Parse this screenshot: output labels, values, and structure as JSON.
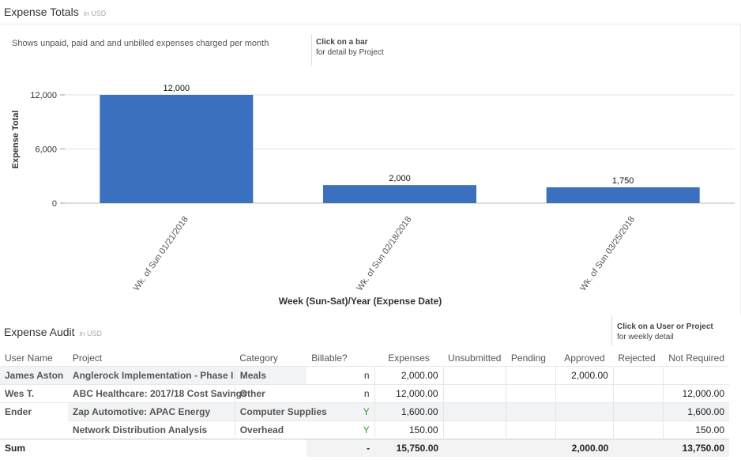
{
  "totals": {
    "title": "Expense Totals",
    "unit": "in USD",
    "description": "Shows unpaid, paid and and unbilled expenses charged per month",
    "hint_bold": "Click on a bar",
    "hint_text": "for detail by Project"
  },
  "chart_data": {
    "type": "bar",
    "categories": [
      "Wk. of Sun 01/21/2018",
      "Wk. of Sun 02/18/2018",
      "Wk. of Sun 03/25/2018"
    ],
    "values": [
      12000,
      2000,
      1750
    ],
    "data_labels": [
      "12,000",
      "2,000",
      "1,750"
    ],
    "yticks": [
      0,
      6000,
      12000
    ],
    "ytick_labels": [
      "0",
      "6,000",
      "12,000"
    ],
    "ylim": [
      0,
      12000
    ],
    "xlabel": "Week (Sun-Sat)/Year (Expense Date)",
    "ylabel": "Expense Total",
    "bar_color": "#3a70be",
    "grid": true
  },
  "audit": {
    "title": "Expense Audit",
    "unit": "in USD",
    "hint_bold": "Click on a User or Project",
    "hint_text": "for weekly detail",
    "columns": [
      "User Name",
      "Project",
      "Category",
      "Billable?",
      "Expenses",
      "Unsubmitted",
      "Pending",
      "Approved",
      "Rejected",
      "Not Required"
    ],
    "rows": [
      {
        "user": "James Aston",
        "project": "Anglerock Implementation - Phase I",
        "category": "Meals",
        "billable": "n",
        "expenses": "2,000.00",
        "unsubmitted": "",
        "pending": "",
        "approved": "2,000.00",
        "rejected": "",
        "not_required": ""
      },
      {
        "user": "Wes T.",
        "project": "ABC Healthcare: 2017/18 Cost Savings",
        "category": "Other",
        "billable": "n",
        "expenses": "12,000.00",
        "unsubmitted": "",
        "pending": "",
        "approved": "",
        "rejected": "",
        "not_required": "12,000.00"
      },
      {
        "user": "Ender",
        "project": "Zap Automotive: APAC Energy",
        "category": "Computer Supplies",
        "billable": "Y",
        "expenses": "1,600.00",
        "unsubmitted": "",
        "pending": "",
        "approved": "",
        "rejected": "",
        "not_required": "1,600.00"
      },
      {
        "user": "",
        "project": "Network Distribution Analysis",
        "category": "Overhead",
        "billable": "Y",
        "expenses": "150.00",
        "unsubmitted": "",
        "pending": "",
        "approved": "",
        "rejected": "",
        "not_required": "150.00"
      }
    ],
    "sum": {
      "label": "Sum",
      "billable": "-",
      "expenses": "15,750.00",
      "approved": "2,000.00",
      "not_required": "13,750.00"
    }
  }
}
